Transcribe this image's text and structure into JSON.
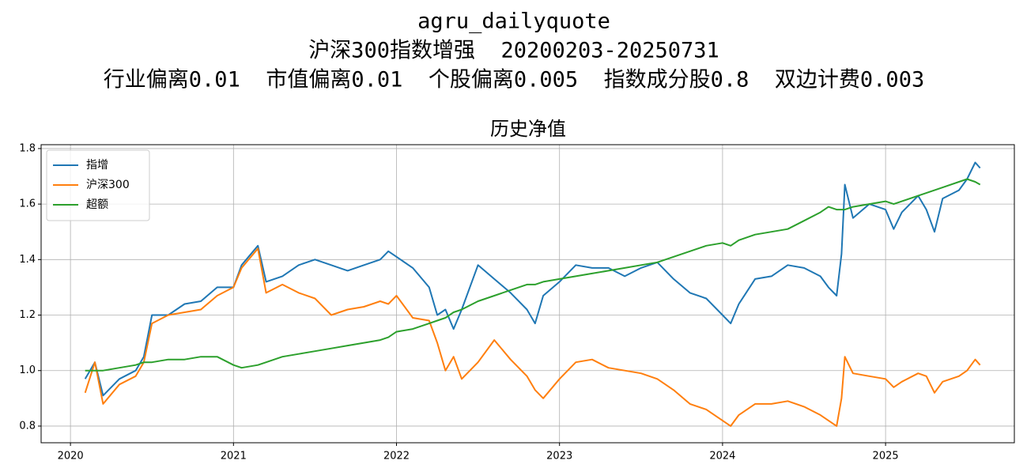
{
  "chart_data": {
    "type": "line",
    "title": "agru_dailyquote",
    "subtitle": "沪深300指数增强  20200203-20250731",
    "parameters": "行业偏离0.01  市值偏离0.01  个股偏离0.005  指数成分股0.8  双边计费0.003",
    "axes_title": "历史净值",
    "x": [
      2020.09,
      2020.15,
      2020.2,
      2020.3,
      2020.4,
      2020.45,
      2020.5,
      2020.6,
      2020.7,
      2020.8,
      2020.9,
      2021.0,
      2021.05,
      2021.15,
      2021.2,
      2021.3,
      2021.4,
      2021.5,
      2021.6,
      2021.7,
      2021.8,
      2021.9,
      2021.95,
      2022.0,
      2022.1,
      2022.2,
      2022.25,
      2022.3,
      2022.35,
      2022.4,
      2022.5,
      2022.6,
      2022.7,
      2022.8,
      2022.85,
      2022.9,
      2023.0,
      2023.1,
      2023.2,
      2023.3,
      2023.4,
      2023.5,
      2023.6,
      2023.7,
      2023.8,
      2023.9,
      2024.0,
      2024.05,
      2024.1,
      2024.2,
      2024.3,
      2024.4,
      2024.5,
      2024.6,
      2024.65,
      2024.7,
      2024.73,
      2024.75,
      2024.8,
      2024.9,
      2025.0,
      2025.05,
      2025.1,
      2025.2,
      2025.25,
      2025.3,
      2025.35,
      2025.45,
      2025.5,
      2025.55,
      2025.58
    ],
    "series": [
      {
        "name": "指增",
        "color": "#1f77b4",
        "values": [
          0.97,
          1.03,
          0.91,
          0.97,
          1.0,
          1.05,
          1.2,
          1.2,
          1.24,
          1.25,
          1.3,
          1.3,
          1.38,
          1.45,
          1.32,
          1.34,
          1.38,
          1.4,
          1.38,
          1.36,
          1.38,
          1.4,
          1.43,
          1.41,
          1.37,
          1.3,
          1.2,
          1.22,
          1.15,
          1.22,
          1.38,
          1.33,
          1.28,
          1.22,
          1.17,
          1.27,
          1.32,
          1.38,
          1.37,
          1.37,
          1.34,
          1.37,
          1.39,
          1.33,
          1.28,
          1.26,
          1.2,
          1.17,
          1.24,
          1.33,
          1.34,
          1.38,
          1.37,
          1.34,
          1.3,
          1.27,
          1.42,
          1.67,
          1.55,
          1.6,
          1.58,
          1.51,
          1.57,
          1.63,
          1.58,
          1.5,
          1.62,
          1.65,
          1.69,
          1.75,
          1.73
        ]
      },
      {
        "name": "沪深300",
        "color": "#ff7f0e",
        "values": [
          0.92,
          1.03,
          0.88,
          0.95,
          0.98,
          1.03,
          1.17,
          1.2,
          1.21,
          1.22,
          1.27,
          1.3,
          1.37,
          1.44,
          1.28,
          1.31,
          1.28,
          1.26,
          1.2,
          1.22,
          1.23,
          1.25,
          1.24,
          1.27,
          1.19,
          1.18,
          1.1,
          1.0,
          1.05,
          0.97,
          1.03,
          1.11,
          1.04,
          0.98,
          0.93,
          0.9,
          0.97,
          1.03,
          1.04,
          1.01,
          1.0,
          0.99,
          0.97,
          0.93,
          0.88,
          0.86,
          0.82,
          0.8,
          0.84,
          0.88,
          0.88,
          0.89,
          0.87,
          0.84,
          0.82,
          0.8,
          0.9,
          1.05,
          0.99,
          0.98,
          0.97,
          0.94,
          0.96,
          0.99,
          0.98,
          0.92,
          0.96,
          0.98,
          1.0,
          1.04,
          1.02
        ]
      },
      {
        "name": "超额",
        "color": "#2ca02c",
        "values": [
          1.0,
          1.0,
          1.0,
          1.01,
          1.02,
          1.03,
          1.03,
          1.04,
          1.04,
          1.05,
          1.05,
          1.02,
          1.01,
          1.02,
          1.03,
          1.05,
          1.06,
          1.07,
          1.08,
          1.09,
          1.1,
          1.11,
          1.12,
          1.14,
          1.15,
          1.17,
          1.18,
          1.19,
          1.21,
          1.22,
          1.25,
          1.27,
          1.29,
          1.31,
          1.31,
          1.32,
          1.33,
          1.34,
          1.35,
          1.36,
          1.37,
          1.38,
          1.39,
          1.41,
          1.43,
          1.45,
          1.46,
          1.45,
          1.47,
          1.49,
          1.5,
          1.51,
          1.54,
          1.57,
          1.59,
          1.58,
          1.58,
          1.58,
          1.59,
          1.6,
          1.61,
          1.6,
          1.61,
          1.63,
          1.64,
          1.65,
          1.66,
          1.68,
          1.69,
          1.68,
          1.67
        ]
      }
    ],
    "xlim": [
      2019.82,
      2025.79
    ],
    "xticks": [
      2020,
      2021,
      2022,
      2023,
      2024,
      2025
    ],
    "ylim": [
      0.74,
      1.814
    ],
    "yticks": [
      0.8,
      {
        "value": 1,
        "label": "1.0"
      },
      1.2,
      1.4,
      1.6,
      1.8
    ],
    "grid": true,
    "legend": "upper-left"
  }
}
